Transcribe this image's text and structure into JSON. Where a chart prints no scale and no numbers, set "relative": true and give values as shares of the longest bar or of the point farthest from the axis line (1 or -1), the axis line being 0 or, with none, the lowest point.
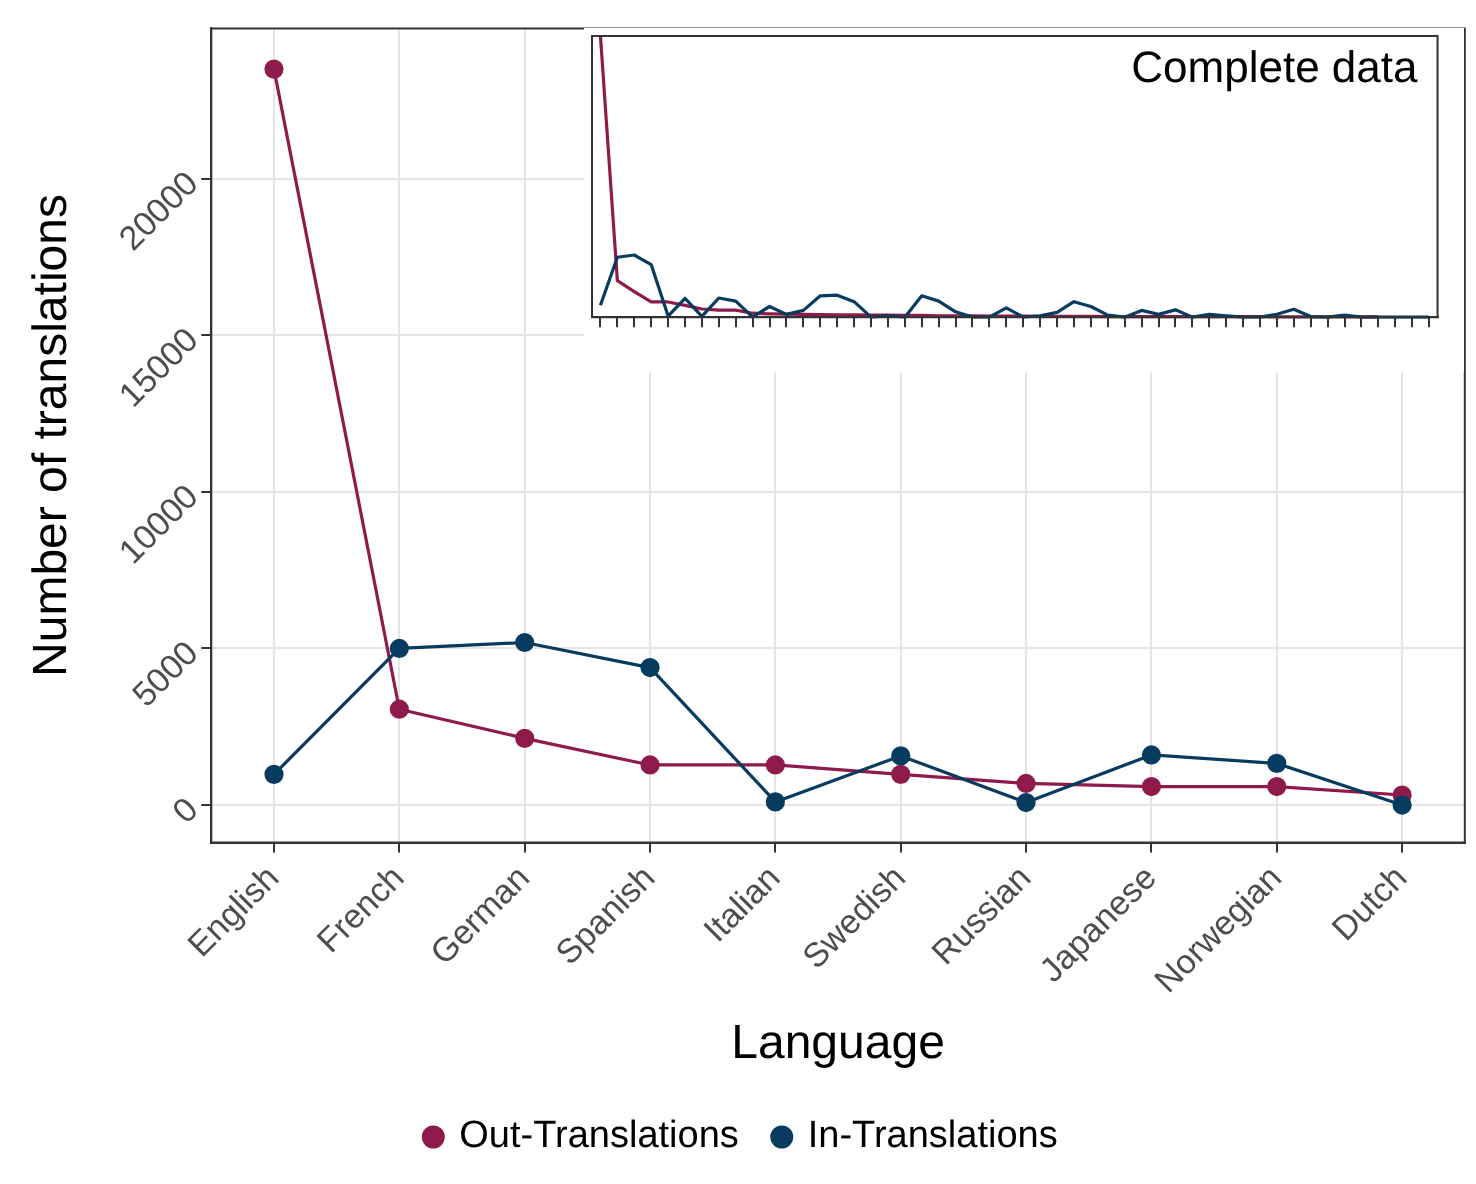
{
  "chart_data": [
    {
      "type": "line",
      "xlabel": "Language",
      "ylabel": "Number of translations",
      "categories": [
        "English",
        "French",
        "German",
        "Spanish",
        "Italian",
        "Swedish",
        "Russian",
        "Japanese",
        "Norwegian",
        "Dutch"
      ],
      "series": [
        {
          "name": "Out-Translations",
          "color": "#8e1b4b",
          "values": [
            23500,
            3060,
            2130,
            1280,
            1280,
            980,
            690,
            590,
            590,
            320
          ]
        },
        {
          "name": "In-Translations",
          "color": "#073b60",
          "values": [
            980,
            5000,
            5190,
            4390,
            100,
            1570,
            80,
            1600,
            1330,
            0
          ]
        }
      ],
      "ylim": [
        -1200,
        24800
      ],
      "yticks": [
        0,
        5000,
        10000,
        15000,
        20000
      ],
      "grid": true,
      "legend": "bottom",
      "marker": "circle",
      "line_style": "solid"
    },
    {
      "type": "line",
      "title": "Complete data",
      "relative": true,
      "categories": [
        null,
        null,
        null,
        null,
        null,
        null,
        null,
        null,
        null,
        null,
        null,
        null,
        null,
        null,
        null,
        null,
        null,
        null,
        null,
        null,
        null,
        null,
        null,
        null,
        null,
        null,
        null,
        null,
        null,
        null,
        null,
        null,
        null,
        null,
        null,
        null,
        null,
        null,
        null,
        null,
        null,
        null,
        null,
        null,
        null,
        null,
        null,
        null,
        null,
        null
      ],
      "series": [
        {
          "color": "#8e1b4b",
          "values": [
            1,
            0.13,
            0.091,
            0.054,
            0.054,
            0.042,
            0.029,
            0.025,
            0.025,
            0.014,
            0.012,
            0.011,
            0.01,
            0.009,
            0.008,
            0.008,
            0.007,
            0.007,
            0.006,
            0.006,
            0.005,
            0.005,
            0.005,
            0.004,
            0.004,
            0.004,
            0.003,
            0.003,
            0.003,
            0.003,
            0.002,
            0.002,
            0.002,
            0.002,
            0.002,
            0.002,
            0.002,
            0.002,
            0.002,
            0.002,
            0.001,
            0.001,
            0.001,
            0.001,
            0.001,
            0.001,
            0.001,
            null,
            null,
            null
          ]
        },
        {
          "color": "#073b60",
          "values": [
            0.042,
            0.213,
            0.221,
            0.187,
            0.004,
            0.067,
            0.003,
            0.068,
            0.057,
            0,
            0.038,
            0.01,
            0.024,
            0.076,
            0.078,
            0.055,
            0,
            0.005,
            0,
            0.076,
            0.057,
            0.019,
            0,
            0,
            0.033,
            0,
            0.005,
            0.017,
            0.055,
            0.038,
            0.007,
            0,
            0.024,
            0.01,
            0.026,
            0,
            0.01,
            0.005,
            0,
            0,
            0.01,
            0.028,
            0.002,
            0,
            0.007,
            0,
            0,
            0,
            0,
            0
          ]
        }
      ],
      "grid": false,
      "legend": false,
      "marker": "none",
      "line_style": "solid"
    }
  ]
}
